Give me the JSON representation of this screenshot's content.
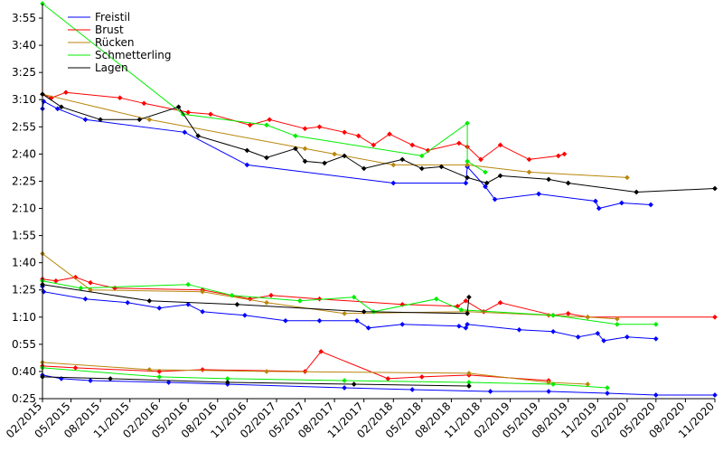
{
  "chart_data": {
    "type": "line",
    "title": "",
    "xlabel": "",
    "ylabel": "",
    "x_axis": {
      "type": "date",
      "range": [
        "2015-02-01",
        "2020-11-01"
      ],
      "ticks": [
        {
          "date": "2015-02-01",
          "label": "02/2015"
        },
        {
          "date": "2015-05-01",
          "label": "05/2015"
        },
        {
          "date": "2015-08-01",
          "label": "08/2015"
        },
        {
          "date": "2015-11-01",
          "label": "11/2015"
        },
        {
          "date": "2016-02-01",
          "label": "02/2016"
        },
        {
          "date": "2016-05-01",
          "label": "05/2016"
        },
        {
          "date": "2016-08-01",
          "label": "08/2016"
        },
        {
          "date": "2016-11-01",
          "label": "11/2016"
        },
        {
          "date": "2017-02-01",
          "label": "02/2017"
        },
        {
          "date": "2017-05-01",
          "label": "05/2017"
        },
        {
          "date": "2017-08-01",
          "label": "08/2017"
        },
        {
          "date": "2017-11-01",
          "label": "11/2017"
        },
        {
          "date": "2018-02-01",
          "label": "02/2018"
        },
        {
          "date": "2018-05-01",
          "label": "05/2018"
        },
        {
          "date": "2018-08-01",
          "label": "08/2018"
        },
        {
          "date": "2018-11-01",
          "label": "11/2018"
        },
        {
          "date": "2019-02-01",
          "label": "02/2019"
        },
        {
          "date": "2019-05-01",
          "label": "05/2019"
        },
        {
          "date": "2019-08-01",
          "label": "08/2019"
        },
        {
          "date": "2019-11-01",
          "label": "11/2019"
        },
        {
          "date": "2020-02-01",
          "label": "02/2020"
        },
        {
          "date": "2020-05-01",
          "label": "05/2020"
        },
        {
          "date": "2020-08-01",
          "label": "08/2020"
        },
        {
          "date": "2020-11-01",
          "label": "11/2020"
        }
      ]
    },
    "y_axis": {
      "unit": "seconds",
      "range": [
        25,
        243
      ],
      "ticks": [
        {
          "value": 25,
          "label": "0:25"
        },
        {
          "value": 40,
          "label": "0:40"
        },
        {
          "value": 55,
          "label": "0:55"
        },
        {
          "value": 70,
          "label": "1:10"
        },
        {
          "value": 85,
          "label": "1:25"
        },
        {
          "value": 100,
          "label": "1:40"
        },
        {
          "value": 115,
          "label": "1:55"
        },
        {
          "value": 130,
          "label": "2:10"
        },
        {
          "value": 145,
          "label": "2:25"
        },
        {
          "value": 160,
          "label": "2:40"
        },
        {
          "value": 175,
          "label": "2:55"
        },
        {
          "value": 190,
          "label": "3:10"
        },
        {
          "value": 205,
          "label": "3:25"
        },
        {
          "value": 220,
          "label": "3:40"
        },
        {
          "value": 235,
          "label": "3:55"
        }
      ]
    },
    "grid": false,
    "legend": {
      "placement": "top-left"
    },
    "series": [
      {
        "name": "Freistil",
        "color": "#0000ff",
        "lines": [
          [
            [
              "2015-02-01",
              185
            ],
            [
              "2015-02-05",
              189
            ],
            [
              "2015-03-20",
              185
            ],
            [
              "2015-06-15",
              179
            ],
            [
              "2016-04-20",
              172
            ],
            [
              "2016-11-01",
              154
            ],
            [
              "2018-02-01",
              144
            ],
            [
              "2018-09-15",
              144
            ],
            [
              "2018-09-20",
              153
            ],
            [
              "2018-11-15",
              142
            ],
            [
              "2018-12-15",
              135
            ],
            [
              "2019-05-01",
              138
            ],
            [
              "2019-10-25",
              134
            ],
            [
              "2019-11-05",
              130
            ],
            [
              "2020-01-15",
              133
            ],
            [
              "2020-04-15",
              132
            ]
          ],
          [
            [
              "2015-02-01",
              87
            ],
            [
              "2015-02-05",
              84
            ],
            [
              "2015-06-15",
              80
            ],
            [
              "2015-10-25",
              78
            ],
            [
              "2016-02-01",
              75
            ],
            [
              "2016-05-01",
              77
            ],
            [
              "2016-06-15",
              73
            ],
            [
              "2016-10-25",
              71
            ],
            [
              "2017-03-01",
              68
            ],
            [
              "2017-06-15",
              68
            ],
            [
              "2017-10-10",
              68
            ],
            [
              "2017-11-15",
              64
            ],
            [
              "2018-03-01",
              66
            ],
            [
              "2018-08-25",
              65
            ],
            [
              "2018-09-15",
              64
            ],
            [
              "2018-09-20",
              66
            ],
            [
              "2019-03-01",
              63
            ],
            [
              "2019-06-15",
              62
            ],
            [
              "2019-09-01",
              59
            ],
            [
              "2019-11-01",
              61
            ],
            [
              "2019-11-20",
              57
            ],
            [
              "2020-02-01",
              59
            ],
            [
              "2020-05-01",
              58
            ]
          ],
          [
            [
              "2015-02-01",
              38
            ],
            [
              "2015-04-01",
              36
            ],
            [
              "2015-07-01",
              35
            ],
            [
              "2016-03-01",
              34
            ],
            [
              "2016-09-01",
              33
            ],
            [
              "2017-09-01",
              31
            ],
            [
              "2018-04-01",
              30
            ],
            [
              "2018-12-01",
              29
            ],
            [
              "2019-06-01",
              29
            ],
            [
              "2019-12-01",
              28
            ],
            [
              "2020-05-01",
              27
            ],
            [
              "2020-11-01",
              27
            ]
          ]
        ]
      },
      {
        "name": "Brust",
        "color": "#ff0000",
        "lines": [
          [
            [
              "2015-02-01",
              193
            ],
            [
              "2015-03-01",
              191
            ],
            [
              "2015-04-15",
              194
            ],
            [
              "2015-10-01",
              191
            ],
            [
              "2015-12-15",
              188
            ],
            [
              "2016-05-01",
              183
            ],
            [
              "2016-07-10",
              182
            ],
            [
              "2016-11-10",
              176
            ],
            [
              "2017-01-10",
              179
            ],
            [
              "2017-05-01",
              174
            ],
            [
              "2017-06-15",
              175
            ],
            [
              "2017-09-01",
              172
            ],
            [
              "2017-10-15",
              170
            ],
            [
              "2017-12-01",
              165
            ],
            [
              "2018-01-20",
              171
            ],
            [
              "2018-04-01",
              165
            ],
            [
              "2018-05-20",
              162
            ],
            [
              "2018-08-25",
              166
            ],
            [
              "2018-09-20",
              164
            ],
            [
              "2018-11-01",
              157
            ],
            [
              "2019-01-01",
              165
            ],
            [
              "2019-04-01",
              157
            ],
            [
              "2019-07-01",
              159
            ],
            [
              "2019-07-20",
              160
            ]
          ],
          [
            [
              "2015-02-01",
              91
            ],
            [
              "2015-03-15",
              90
            ],
            [
              "2015-05-15",
              92
            ],
            [
              "2015-07-01",
              89
            ],
            [
              "2015-09-15",
              86
            ],
            [
              "2016-06-15",
              85
            ],
            [
              "2016-11-10",
              80
            ],
            [
              "2017-01-15",
              82
            ],
            [
              "2017-06-15",
              80
            ],
            [
              "2018-03-01",
              77
            ],
            [
              "2018-08-20",
              76
            ],
            [
              "2018-09-15",
              79
            ],
            [
              "2018-11-10",
              73
            ],
            [
              "2019-01-01",
              78
            ],
            [
              "2019-06-15",
              71
            ],
            [
              "2019-08-01",
              72
            ],
            [
              "2019-10-01",
              70
            ],
            [
              "2020-11-01",
              70
            ]
          ],
          [
            [
              "2015-02-01",
              43
            ],
            [
              "2015-05-15",
              42
            ],
            [
              "2016-02-01",
              40
            ],
            [
              "2016-06-15",
              41
            ],
            [
              "2017-05-01",
              40
            ],
            [
              "2017-06-20",
              51
            ],
            [
              "2018-01-15",
              36
            ],
            [
              "2018-05-01",
              37
            ],
            [
              "2018-09-25",
              38
            ],
            [
              "2019-06-01",
              35
            ]
          ]
        ]
      },
      {
        "name": "Rücken",
        "color": "#b8860b",
        "lines": [
          [
            [
              "2015-02-01",
              193
            ],
            [
              "2016-01-01",
              179
            ],
            [
              "2017-05-01",
              163
            ],
            [
              "2017-08-01",
              160
            ],
            [
              "2018-02-01",
              154
            ],
            [
              "2018-09-20",
              154
            ],
            [
              "2019-04-01",
              150
            ],
            [
              "2020-02-01",
              147
            ]
          ],
          [
            [
              "2015-02-01",
              105
            ],
            [
              "2015-07-01",
              85
            ],
            [
              "2016-06-15",
              84
            ],
            [
              "2017-01-01",
              78
            ],
            [
              "2017-09-01",
              72
            ],
            [
              "2018-09-20",
              73
            ],
            [
              "2019-06-01",
              71
            ],
            [
              "2019-10-01",
              70
            ],
            [
              "2020-01-01",
              69
            ]
          ],
          [
            [
              "2015-02-01",
              45
            ],
            [
              "2016-01-01",
              41
            ],
            [
              "2017-01-01",
              40
            ],
            [
              "2018-09-25",
              39
            ],
            [
              "2019-06-01",
              34
            ],
            [
              "2019-10-01",
              33
            ]
          ]
        ]
      },
      {
        "name": "Schmetterling",
        "color": "#00ee00",
        "lines": [
          [
            [
              "2015-02-01",
              243
            ],
            [
              "2016-04-15",
              182
            ],
            [
              "2017-01-01",
              176
            ],
            [
              "2017-04-01",
              170
            ],
            [
              "2018-05-01",
              159
            ],
            [
              "2018-09-20",
              177
            ],
            [
              "2018-09-20",
              156
            ],
            [
              "2018-11-15",
              150
            ]
          ],
          [
            [
              "2015-02-01",
              90
            ],
            [
              "2015-06-01",
              86
            ],
            [
              "2016-05-01",
              88
            ],
            [
              "2016-09-15",
              82
            ],
            [
              "2017-04-15",
              79
            ],
            [
              "2017-10-01",
              81
            ],
            [
              "2017-12-01",
              73
            ],
            [
              "2018-06-15",
              80
            ],
            [
              "2018-09-01",
              74
            ],
            [
              "2019-06-15",
              71
            ],
            [
              "2020-01-01",
              66
            ],
            [
              "2020-05-01",
              66
            ]
          ],
          [
            [
              "2015-02-01",
              42
            ],
            [
              "2016-02-01",
              37
            ],
            [
              "2016-09-01",
              36
            ],
            [
              "2017-09-01",
              35
            ],
            [
              "2018-09-25",
              34
            ],
            [
              "2019-06-15",
              33
            ],
            [
              "2019-12-01",
              31
            ]
          ]
        ]
      },
      {
        "name": "Lagen",
        "color": "#000000",
        "lines": [
          [
            [
              "2015-02-01",
              193
            ],
            [
              "2015-04-01",
              186
            ],
            [
              "2015-08-01",
              179
            ],
            [
              "2015-12-01",
              179
            ],
            [
              "2016-04-01",
              186
            ],
            [
              "2016-06-01",
              170
            ],
            [
              "2016-11-01",
              162
            ],
            [
              "2017-01-01",
              158
            ],
            [
              "2017-04-01",
              163
            ],
            [
              "2017-05-01",
              156
            ],
            [
              "2017-07-01",
              155
            ],
            [
              "2017-09-01",
              159
            ],
            [
              "2017-11-01",
              152
            ],
            [
              "2018-03-01",
              157
            ],
            [
              "2018-05-01",
              152
            ],
            [
              "2018-07-01",
              153
            ],
            [
              "2018-09-20",
              147
            ],
            [
              "2018-11-20",
              144
            ],
            [
              "2019-01-01",
              148
            ],
            [
              "2019-06-01",
              146
            ],
            [
              "2019-08-01",
              144
            ],
            [
              "2020-03-01",
              139
            ],
            [
              "2020-11-01",
              141
            ]
          ],
          [
            [
              "2015-02-01",
              88
            ],
            [
              "2016-01-01",
              79
            ],
            [
              "2016-10-01",
              77
            ],
            [
              "2017-11-01",
              73
            ],
            [
              "2018-09-20",
              72
            ],
            [
              "2018-09-25",
              81
            ]
          ],
          [
            [
              "2015-02-01",
              37
            ],
            [
              "2015-09-01",
              36
            ],
            [
              "2016-09-01",
              34
            ],
            [
              "2017-10-01",
              33
            ],
            [
              "2018-09-25",
              32
            ]
          ]
        ]
      }
    ]
  }
}
